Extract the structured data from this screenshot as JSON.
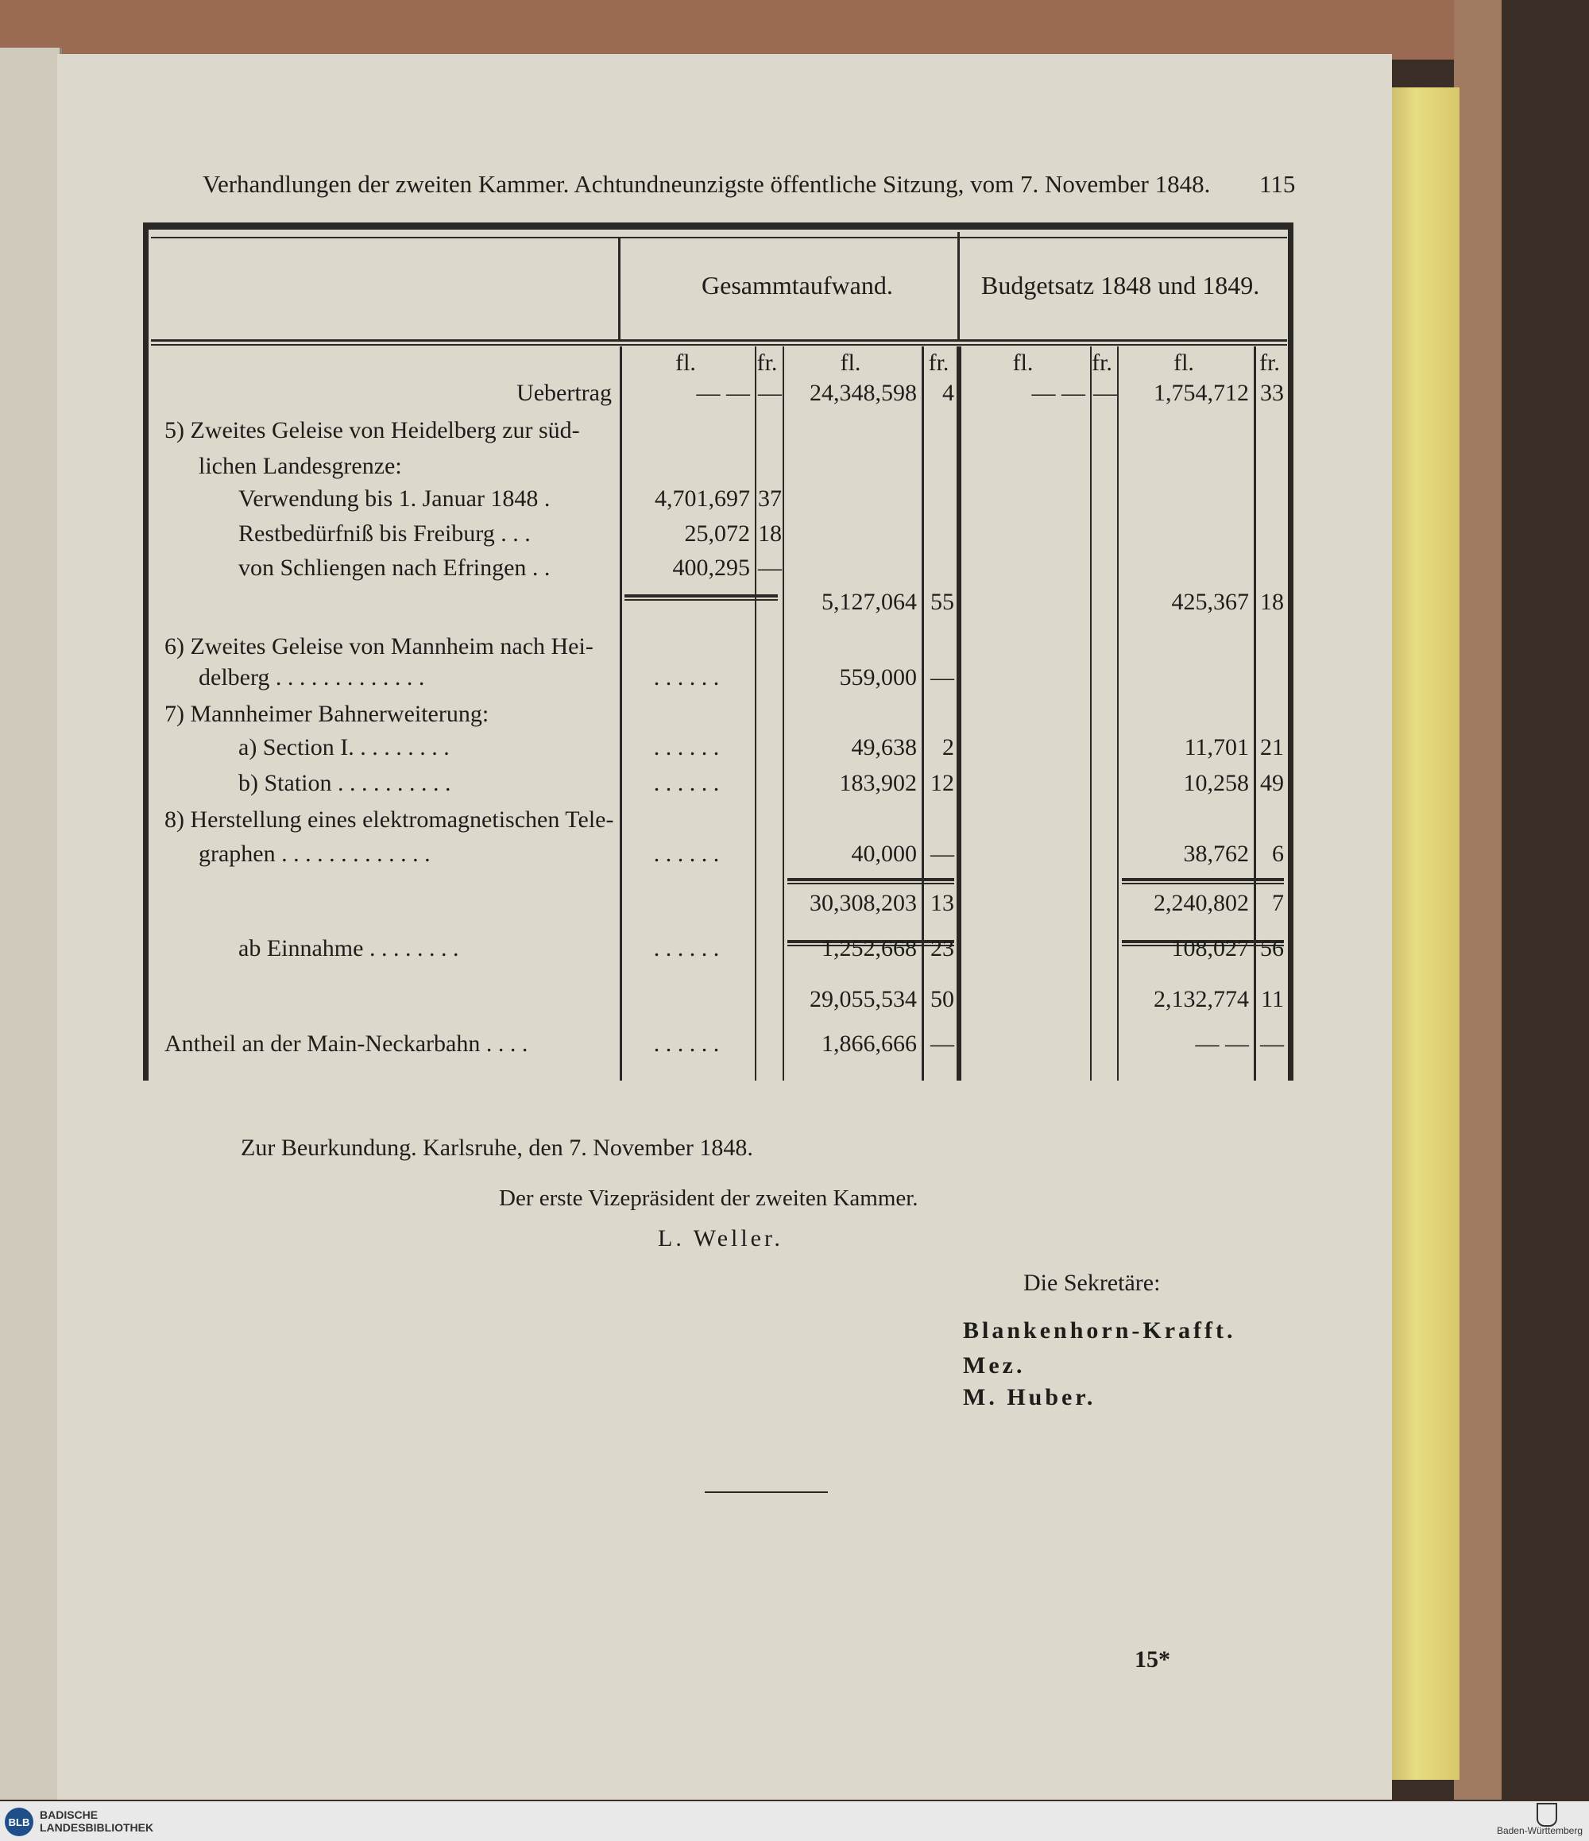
{
  "header": {
    "running_title": "Verhandlungen der zweiten Kammer.  Achtundneunzigste öffentliche Sitzung, vom 7. November 1848.",
    "page_number": "115"
  },
  "table": {
    "group_headers": [
      "Gesammtaufwand.",
      "Budgetsatz 1848 und 1849."
    ],
    "sub_headers": [
      "fl.",
      "fr.",
      "fl.",
      "fr.",
      "fl.",
      "fr.",
      "fl.",
      "fr."
    ],
    "rows": [
      {
        "label": "Uebertrag",
        "cells": [
          "— —",
          "—",
          "24,348,598",
          "4",
          "— —",
          "—",
          "1,754,712",
          "33"
        ]
      },
      {
        "label": "5) Zweites Geleise von Heidelberg zur süd-",
        "cells": [
          "",
          "",
          "",
          "",
          "",
          "",
          "",
          ""
        ]
      },
      {
        "label": "lichen Landesgrenze:",
        "cells": [
          "",
          "",
          "",
          "",
          "",
          "",
          "",
          ""
        ]
      },
      {
        "label": "Verwendung bis 1. Januar 1848  .",
        "cells": [
          "4,701,697",
          "37",
          "",
          "",
          "",
          "",
          "",
          ""
        ]
      },
      {
        "label": "Restbedürfniß bis Freiburg   .  .  .",
        "cells": [
          "25,072",
          "18",
          "",
          "",
          "",
          "",
          "",
          ""
        ]
      },
      {
        "label": "von Schliengen nach Efringen  .  .",
        "cells": [
          "400,295",
          "—",
          "",
          "",
          "",
          "",
          "",
          ""
        ]
      },
      {
        "label": "",
        "cells": [
          "",
          "",
          "5,127,064",
          "55",
          "",
          "",
          "425,367",
          "18"
        ]
      },
      {
        "label": "6) Zweites Geleise von Mannheim nach Hei-",
        "cells": [
          "",
          "",
          "",
          "",
          "",
          "",
          "",
          ""
        ]
      },
      {
        "label": "delberg  .  .  .  .  .  .  .  .  .  .  .  .  .",
        "cells": [
          ".  .  .  .  .  .",
          "",
          "559,000",
          "—",
          "",
          "",
          "",
          ""
        ]
      },
      {
        "label": "7) Mannheimer Bahnerweiterung:",
        "cells": [
          "",
          "",
          "",
          "",
          "",
          "",
          "",
          ""
        ]
      },
      {
        "label": "a) Section I.  .  .  .  .  .  .  .  .",
        "cells": [
          ".  .  .  .  .  .",
          "",
          "49,638",
          "2",
          "",
          "",
          "11,701",
          "21"
        ]
      },
      {
        "label": "b) Station  .  .  .  .  .  .  .  .  .  .",
        "cells": [
          ".  .  .  .  .  .",
          "",
          "183,902",
          "12",
          "",
          "",
          "10,258",
          "49"
        ]
      },
      {
        "label": "8) Herstellung eines elektromagnetischen Tele-",
        "cells": [
          "",
          "",
          "",
          "",
          "",
          "",
          "",
          ""
        ]
      },
      {
        "label": "graphen  .  .  .  .  .  .  .  .  .  .  .  .  .",
        "cells": [
          ".  .  .  .  .  .",
          "",
          "40,000",
          "—",
          "",
          "",
          "38,762",
          "6"
        ]
      },
      {
        "label": "",
        "cells": [
          "",
          "",
          "30,308,203",
          "13",
          "",
          "",
          "2,240,802",
          "7"
        ]
      },
      {
        "label": "ab Einnahme  .  .  .  .  .  .  .  .",
        "cells": [
          ".  .  .  .  .  .",
          "",
          "1,252,668",
          "23",
          "",
          "",
          "108,027",
          "56"
        ]
      },
      {
        "label": "",
        "cells": [
          "",
          "",
          "29,055,534",
          "50",
          "",
          "",
          "2,132,774",
          "11"
        ]
      },
      {
        "label": "Antheil an der Main-Neckarbahn  .  .  .  .",
        "cells": [
          ".  .  .  .  .  .",
          "",
          "1,866,666",
          "—",
          "",
          "",
          "— —",
          "—"
        ]
      }
    ]
  },
  "closing": {
    "attestation": "Zur Beurkundung.   Karlsruhe, den 7. November 1848.",
    "vice_president_title": "Der erste Vizepräsident der zweiten Kammer.",
    "vice_president_name": "L. Weller.",
    "secretaries_title": "Die Sekretäre:",
    "secretaries": [
      "Blankenhorn-Krafft.",
      "Mez.",
      "M. Huber."
    ],
    "signature_mark": "15*"
  },
  "footer": {
    "library_logo": "BLB",
    "library_name": "BADISCHE LANDESBIBLIOTHEK",
    "state_label": "Baden-Württemberg"
  }
}
